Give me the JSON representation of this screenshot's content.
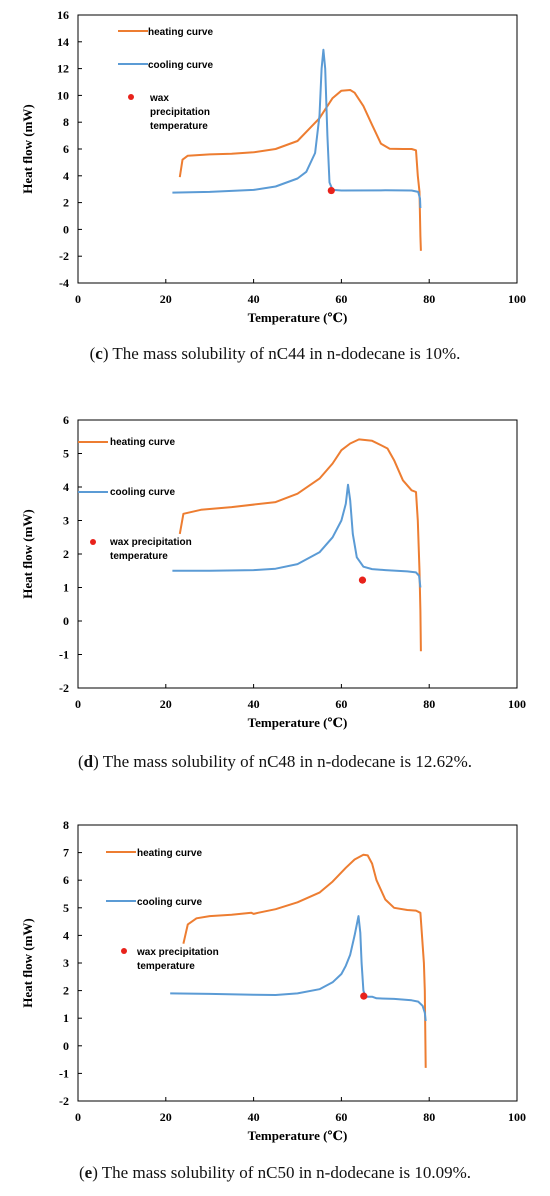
{
  "colors": {
    "heating": "#ED7D31",
    "cooling": "#5B9BD5",
    "marker": "#E8221B"
  },
  "chart_data": [
    {
      "type": "line",
      "panel_letter": "c",
      "caption_text": " The mass solubility of nC44 in n-dodecane is 10%.",
      "xlabel": "Temperature (℃)",
      "ylabel": "Heat flow (mW)",
      "xlim": [
        0,
        100
      ],
      "ylim": [
        -4,
        16
      ],
      "xticks": [
        "0",
        "20",
        "40",
        "60",
        "80",
        "100"
      ],
      "yticks": [
        "-4",
        "-2",
        "0",
        "2",
        "4",
        "6",
        "8",
        "10",
        "12",
        "14",
        "16"
      ],
      "grid": false,
      "legend": [
        "heating curve",
        "cooling curve",
        "wax precipitation temperature"
      ],
      "series": [
        {
          "name": "heating curve",
          "points": [
            [
              23.2,
              3.9
            ],
            [
              23.8,
              5.2
            ],
            [
              25,
              5.5
            ],
            [
              30,
              5.6
            ],
            [
              35,
              5.65
            ],
            [
              40,
              5.75
            ],
            [
              45,
              6.0
            ],
            [
              50,
              6.6
            ],
            [
              55,
              8.3
            ],
            [
              58,
              9.8
            ],
            [
              60,
              10.35
            ],
            [
              62,
              10.4
            ],
            [
              63,
              10.2
            ],
            [
              65,
              9.2
            ],
            [
              67,
              7.8
            ],
            [
              69,
              6.4
            ],
            [
              71,
              6.02
            ],
            [
              74,
              6.0
            ],
            [
              76,
              6.0
            ],
            [
              77,
              5.9
            ],
            [
              77.4,
              4.0
            ],
            [
              77.8,
              2.8
            ],
            [
              78,
              -0.5
            ],
            [
              78.1,
              -1.6
            ]
          ]
        },
        {
          "name": "cooling curve",
          "points": [
            [
              21.5,
              2.75
            ],
            [
              30,
              2.8
            ],
            [
              40,
              2.95
            ],
            [
              45,
              3.2
            ],
            [
              50,
              3.8
            ],
            [
              52,
              4.3
            ],
            [
              54,
              5.7
            ],
            [
              55,
              8.5
            ],
            [
              55.5,
              12.0
            ],
            [
              55.9,
              13.4
            ],
            [
              56.3,
              12.0
            ],
            [
              56.8,
              7.0
            ],
            [
              57.3,
              3.5
            ],
            [
              58,
              2.95
            ],
            [
              60,
              2.9
            ],
            [
              70,
              2.92
            ],
            [
              76,
              2.9
            ],
            [
              77.5,
              2.8
            ],
            [
              77.9,
              2.3
            ],
            [
              78,
              1.6
            ]
          ]
        }
      ],
      "points": [
        {
          "name": "wax precipitation temperature",
          "x": 57.7,
          "y": 2.9
        }
      ]
    },
    {
      "type": "line",
      "panel_letter": "d",
      "caption_text": " The mass solubility of nC48 in n-dodecane is 12.62%.",
      "xlabel": "Temperature (℃)",
      "ylabel": "Heat flow (mW)",
      "xlim": [
        0,
        100
      ],
      "ylim": [
        -2,
        6
      ],
      "xticks": [
        "0",
        "20",
        "40",
        "60",
        "80",
        "100"
      ],
      "yticks": [
        "-2",
        "-1",
        "0",
        "1",
        "2",
        "3",
        "4",
        "5",
        "6"
      ],
      "grid": false,
      "legend": [
        "heating curve",
        "cooling curve",
        "wax precipitation temperature"
      ],
      "series": [
        {
          "name": "heating curve",
          "points": [
            [
              23.2,
              2.6
            ],
            [
              24,
              3.2
            ],
            [
              28,
              3.32
            ],
            [
              35,
              3.4
            ],
            [
              45,
              3.55
            ],
            [
              50,
              3.8
            ],
            [
              55,
              4.25
            ],
            [
              58,
              4.7
            ],
            [
              60,
              5.1
            ],
            [
              62,
              5.3
            ],
            [
              64,
              5.42
            ],
            [
              67,
              5.38
            ],
            [
              69,
              5.25
            ],
            [
              70.5,
              5.15
            ],
            [
              72,
              4.8
            ],
            [
              74,
              4.2
            ],
            [
              76,
              3.9
            ],
            [
              77,
              3.85
            ],
            [
              77.4,
              3.0
            ],
            [
              77.8,
              1.5
            ],
            [
              78,
              0.3
            ],
            [
              78.1,
              -0.9
            ]
          ]
        },
        {
          "name": "cooling curve",
          "points": [
            [
              21.5,
              1.5
            ],
            [
              30,
              1.5
            ],
            [
              40,
              1.52
            ],
            [
              45,
              1.56
            ],
            [
              50,
              1.7
            ],
            [
              55,
              2.05
            ],
            [
              58,
              2.5
            ],
            [
              60,
              3.0
            ],
            [
              61,
              3.5
            ],
            [
              61.5,
              4.07
            ],
            [
              62,
              3.6
            ],
            [
              62.6,
              2.6
            ],
            [
              63.5,
              1.9
            ],
            [
              65,
              1.62
            ],
            [
              67,
              1.55
            ],
            [
              70,
              1.52
            ],
            [
              75,
              1.48
            ],
            [
              77,
              1.45
            ],
            [
              77.7,
              1.35
            ],
            [
              78,
              1.0
            ]
          ]
        }
      ],
      "points": [
        {
          "name": "wax precipitation temperature",
          "x": 64.8,
          "y": 1.22
        }
      ]
    },
    {
      "type": "line",
      "panel_letter": "e",
      "caption_text": " The mass solubility of nC50 in n-dodecane is 10.09%.",
      "xlabel": "Temperature (℃)",
      "ylabel": "Heat flow (mW)",
      "xlim": [
        0,
        100
      ],
      "ylim": [
        -2,
        8
      ],
      "xticks": [
        "0",
        "20",
        "40",
        "60",
        "80",
        "100"
      ],
      "yticks": [
        "-2",
        "-1",
        "0",
        "1",
        "2",
        "3",
        "4",
        "5",
        "6",
        "7",
        "8"
      ],
      "grid": false,
      "legend": [
        "heating curve",
        "cooling curve",
        "wax precipitation temperature"
      ],
      "series": [
        {
          "name": "heating curve",
          "points": [
            [
              24,
              3.7
            ],
            [
              25,
              4.4
            ],
            [
              27,
              4.62
            ],
            [
              30,
              4.7
            ],
            [
              35,
              4.75
            ],
            [
              39.5,
              4.82
            ],
            [
              40,
              4.78
            ],
            [
              41,
              4.82
            ],
            [
              45,
              4.95
            ],
            [
              50,
              5.2
            ],
            [
              55,
              5.55
            ],
            [
              58,
              5.95
            ],
            [
              61,
              6.45
            ],
            [
              63,
              6.75
            ],
            [
              65,
              6.92
            ],
            [
              66,
              6.9
            ],
            [
              67,
              6.6
            ],
            [
              68,
              6.0
            ],
            [
              70,
              5.3
            ],
            [
              72,
              5.0
            ],
            [
              75,
              4.92
            ],
            [
              77,
              4.9
            ],
            [
              78,
              4.82
            ],
            [
              78.8,
              3.0
            ],
            [
              79,
              2.0
            ],
            [
              79.2,
              -0.8
            ]
          ]
        },
        {
          "name": "cooling curve",
          "points": [
            [
              21,
              1.9
            ],
            [
              30,
              1.88
            ],
            [
              40,
              1.85
            ],
            [
              45,
              1.84
            ],
            [
              50,
              1.9
            ],
            [
              55,
              2.05
            ],
            [
              58,
              2.3
            ],
            [
              60,
              2.6
            ],
            [
              61,
              2.9
            ],
            [
              62,
              3.3
            ],
            [
              63,
              4.0
            ],
            [
              63.9,
              4.7
            ],
            [
              64.3,
              4.1
            ],
            [
              64.6,
              3.0
            ],
            [
              65,
              2.0
            ],
            [
              65.5,
              1.78
            ],
            [
              67,
              1.78
            ],
            [
              68,
              1.72
            ],
            [
              72,
              1.7
            ],
            [
              76,
              1.65
            ],
            [
              77.5,
              1.6
            ],
            [
              78.5,
              1.45
            ],
            [
              79,
              1.2
            ],
            [
              79.2,
              0.9
            ]
          ]
        }
      ],
      "points": [
        {
          "name": "wax precipitation temperature",
          "x": 65.1,
          "y": 1.8
        }
      ]
    }
  ]
}
